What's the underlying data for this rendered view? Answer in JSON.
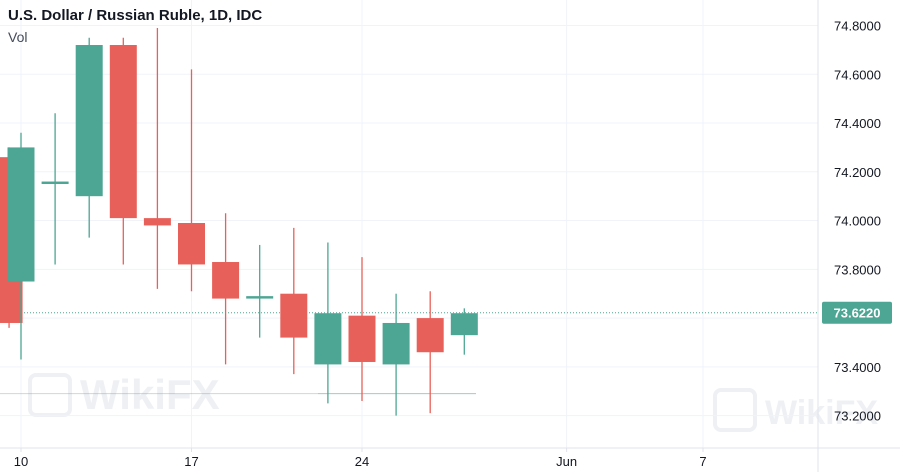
{
  "header": {
    "title": "U.S. Dollar / Russian Ruble, 1D, IDC",
    "volume_label": "Vol"
  },
  "colors": {
    "up": "#4da593",
    "down": "#e8605a",
    "grid": "#f0f3fa",
    "axis": "#e0e3eb",
    "price_line": "#4da593",
    "watermark": "#eef0f4"
  },
  "watermark_text": "WikiFX",
  "chart_data": {
    "type": "candlestick",
    "title": "U.S. Dollar / Russian Ruble, 1D, IDC",
    "ylim": [
      73.1,
      74.88
    ],
    "y_ticks": [
      {
        "value": 74.8,
        "label": "74.8000"
      },
      {
        "value": 74.6,
        "label": "74.6000"
      },
      {
        "value": 74.4,
        "label": "74.4000"
      },
      {
        "value": 74.2,
        "label": "74.2000"
      },
      {
        "value": 74.0,
        "label": "74.0000"
      },
      {
        "value": 73.8,
        "label": "73.8000"
      },
      {
        "value": 73.4,
        "label": "73.4000"
      },
      {
        "value": 73.2,
        "label": "73.2000"
      }
    ],
    "x_ticks": [
      {
        "index": 0,
        "label": "10"
      },
      {
        "index": 5,
        "label": "17"
      },
      {
        "index": 10,
        "label": "24"
      },
      {
        "index": 16,
        "label": "Jun"
      },
      {
        "index": 20,
        "label": "7"
      }
    ],
    "current_price": {
      "value": 73.622,
      "label": "73.6220"
    },
    "volume_level": 73.29,
    "candles": [
      {
        "index": -0.35,
        "open": 74.26,
        "high": 74.3,
        "low": 73.56,
        "close": 73.58
      },
      {
        "index": 0,
        "open": 73.75,
        "high": 74.36,
        "low": 73.43,
        "close": 74.3
      },
      {
        "index": 1,
        "open": 74.15,
        "high": 74.44,
        "low": 73.82,
        "close": 74.16
      },
      {
        "index": 2,
        "open": 74.1,
        "high": 74.75,
        "low": 73.93,
        "close": 74.72
      },
      {
        "index": 3,
        "open": 74.72,
        "high": 74.75,
        "low": 73.82,
        "close": 74.01
      },
      {
        "index": 4,
        "open": 74.01,
        "high": 74.79,
        "low": 73.72,
        "close": 73.98
      },
      {
        "index": 5,
        "open": 73.99,
        "high": 74.62,
        "low": 73.71,
        "close": 73.82
      },
      {
        "index": 6,
        "open": 73.83,
        "high": 74.03,
        "low": 73.41,
        "close": 73.68
      },
      {
        "index": 7,
        "open": 73.68,
        "high": 73.9,
        "low": 73.52,
        "close": 73.69
      },
      {
        "index": 8,
        "open": 73.7,
        "high": 73.97,
        "low": 73.37,
        "close": 73.52
      },
      {
        "index": 9,
        "open": 73.41,
        "high": 73.91,
        "low": 73.25,
        "close": 73.62
      },
      {
        "index": 10,
        "open": 73.61,
        "high": 73.85,
        "low": 73.26,
        "close": 73.42
      },
      {
        "index": 11,
        "open": 73.41,
        "high": 73.7,
        "low": 73.2,
        "close": 73.58
      },
      {
        "index": 12,
        "open": 73.6,
        "high": 73.71,
        "low": 73.21,
        "close": 73.46
      },
      {
        "index": 13,
        "open": 73.53,
        "high": 73.64,
        "low": 73.45,
        "close": 73.62
      }
    ]
  }
}
